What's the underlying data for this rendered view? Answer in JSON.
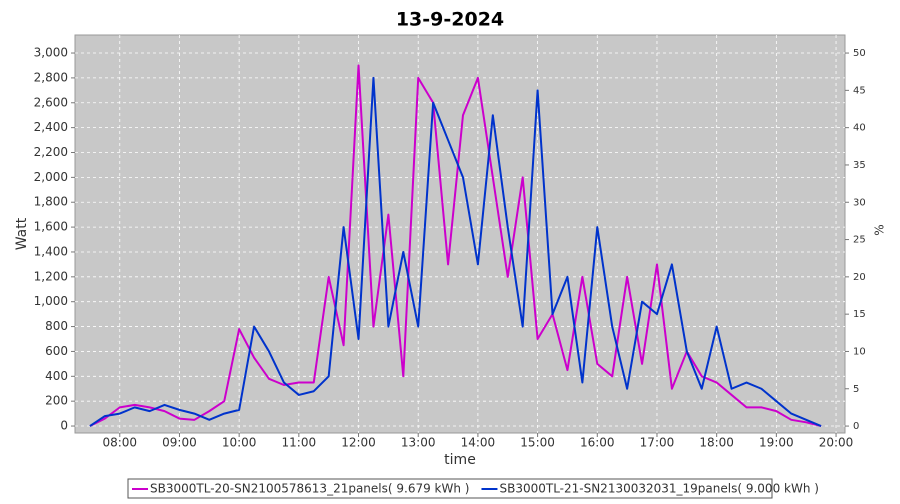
{
  "chart_data": {
    "type": "line",
    "title": "13-9-2024",
    "xlabel": "time",
    "ylabel": "Watt",
    "y2label": "%",
    "xlim": [
      7.25,
      20.15
    ],
    "ylim": [
      -56,
      3145
    ],
    "y2lim": [
      -0.93,
      52.42
    ],
    "xticks": [
      {
        "value": 8,
        "label": "08:00"
      },
      {
        "value": 9,
        "label": "09:00"
      },
      {
        "value": 10,
        "label": "10:00"
      },
      {
        "value": 11,
        "label": "11:00"
      },
      {
        "value": 12,
        "label": "12:00"
      },
      {
        "value": 13,
        "label": "13:00"
      },
      {
        "value": 14,
        "label": "14:00"
      },
      {
        "value": 15,
        "label": "15:00"
      },
      {
        "value": 16,
        "label": "16:00"
      },
      {
        "value": 17,
        "label": "17:00"
      },
      {
        "value": 18,
        "label": "18:00"
      },
      {
        "value": 19,
        "label": "19:00"
      },
      {
        "value": 20,
        "label": "20:00"
      }
    ],
    "yticks": [
      0,
      200,
      400,
      600,
      800,
      {
        "value": 1000,
        "label": "1,000"
      },
      {
        "value": 1200,
        "label": "1,200"
      },
      {
        "value": 1400,
        "label": "1,400"
      },
      {
        "value": 1600,
        "label": "1,600"
      },
      {
        "value": 1800,
        "label": "1,800"
      },
      {
        "value": 2000,
        "label": "2,000"
      },
      {
        "value": 2200,
        "label": "2,200"
      },
      {
        "value": 2400,
        "label": "2,400"
      },
      {
        "value": 2600,
        "label": "2,600"
      },
      {
        "value": 2800,
        "label": "2,800"
      },
      {
        "value": 3000,
        "label": "3,000"
      }
    ],
    "y2ticks": [
      0,
      5,
      10,
      15,
      20,
      25,
      30,
      35,
      40,
      45,
      50
    ],
    "grid": true,
    "x": [
      7.5,
      7.75,
      8,
      8.25,
      8.5,
      8.75,
      9,
      9.25,
      9.5,
      9.75,
      10,
      10.25,
      10.5,
      10.75,
      11,
      11.25,
      11.5,
      11.75,
      12,
      12.25,
      12.5,
      12.75,
      13,
      13.25,
      13.5,
      13.75,
      14,
      14.25,
      14.5,
      14.75,
      15,
      15.25,
      15.5,
      15.75,
      16,
      16.25,
      16.5,
      16.75,
      17,
      17.25,
      17.5,
      17.75,
      18,
      18.25,
      18.5,
      18.75,
      19,
      19.25,
      19.5,
      19.75
    ],
    "series": [
      {
        "name": "SB3000TL-20-SN2100578613_21panels( 9.679 kWh )",
        "color": "#cc00cc",
        "values": [
          0,
          60,
          150,
          170,
          150,
          120,
          60,
          50,
          120,
          200,
          780,
          550,
          380,
          330,
          350,
          350,
          1200,
          650,
          2900,
          800,
          1700,
          400,
          2800,
          2600,
          1300,
          2500,
          2800,
          2000,
          1200,
          2000,
          700,
          900,
          450,
          1200,
          500,
          400,
          1200,
          500,
          1300,
          300,
          600,
          400,
          350,
          250,
          150,
          150,
          120,
          50,
          30,
          0
        ]
      },
      {
        "name": "SB3000TL-21-SN2130032031_19panels( 9.000 kWh )",
        "color": "#0033cc",
        "values": [
          0,
          80,
          100,
          150,
          120,
          170,
          130,
          100,
          50,
          100,
          130,
          800,
          600,
          350,
          250,
          280,
          400,
          1600,
          700,
          2800,
          800,
          1400,
          800,
          2600,
          2300,
          2000,
          1300,
          2500,
          1600,
          800,
          2700,
          900,
          1200,
          350,
          1600,
          800,
          300,
          1000,
          900,
          1300,
          600,
          300,
          800,
          300,
          350,
          300,
          200,
          100,
          50,
          0
        ]
      }
    ]
  }
}
